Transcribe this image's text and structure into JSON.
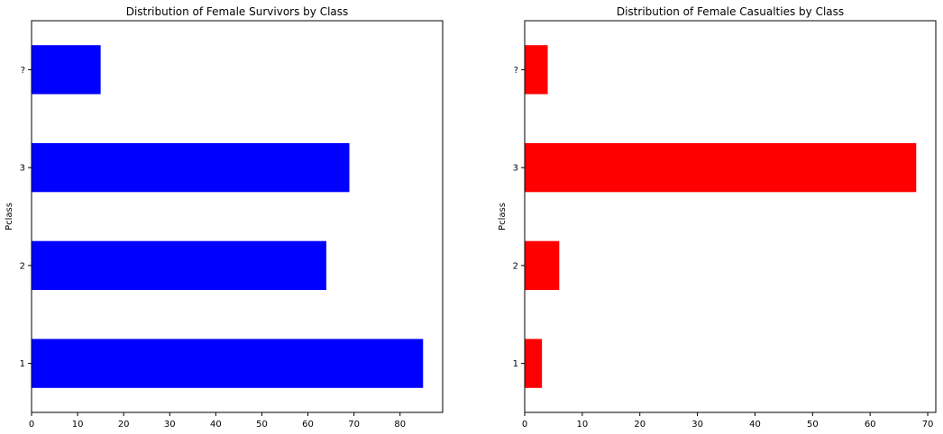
{
  "chart_data": [
    {
      "type": "bar",
      "orientation": "horizontal",
      "title": "Distribution of Female Survivors by Class",
      "ylabel": "Pclass",
      "xlabel": "",
      "categories": [
        "1",
        "2",
        "3",
        "?"
      ],
      "values": [
        85,
        64,
        69,
        15
      ],
      "color": "#0000ff",
      "xlim": [
        0,
        89.25
      ],
      "xticks": [
        0,
        10,
        20,
        30,
        40,
        50,
        60,
        70,
        80
      ],
      "grid": false
    },
    {
      "type": "bar",
      "orientation": "horizontal",
      "title": "Distribution of Female Casualties by Class",
      "ylabel": "Pclass",
      "xlabel": "",
      "categories": [
        "1",
        "2",
        "3",
        "?"
      ],
      "values": [
        3,
        6,
        68,
        4
      ],
      "color": "#ff0000",
      "xlim": [
        0,
        71.4
      ],
      "xticks": [
        0,
        10,
        20,
        30,
        40,
        50,
        60,
        70
      ],
      "grid": false
    }
  ]
}
